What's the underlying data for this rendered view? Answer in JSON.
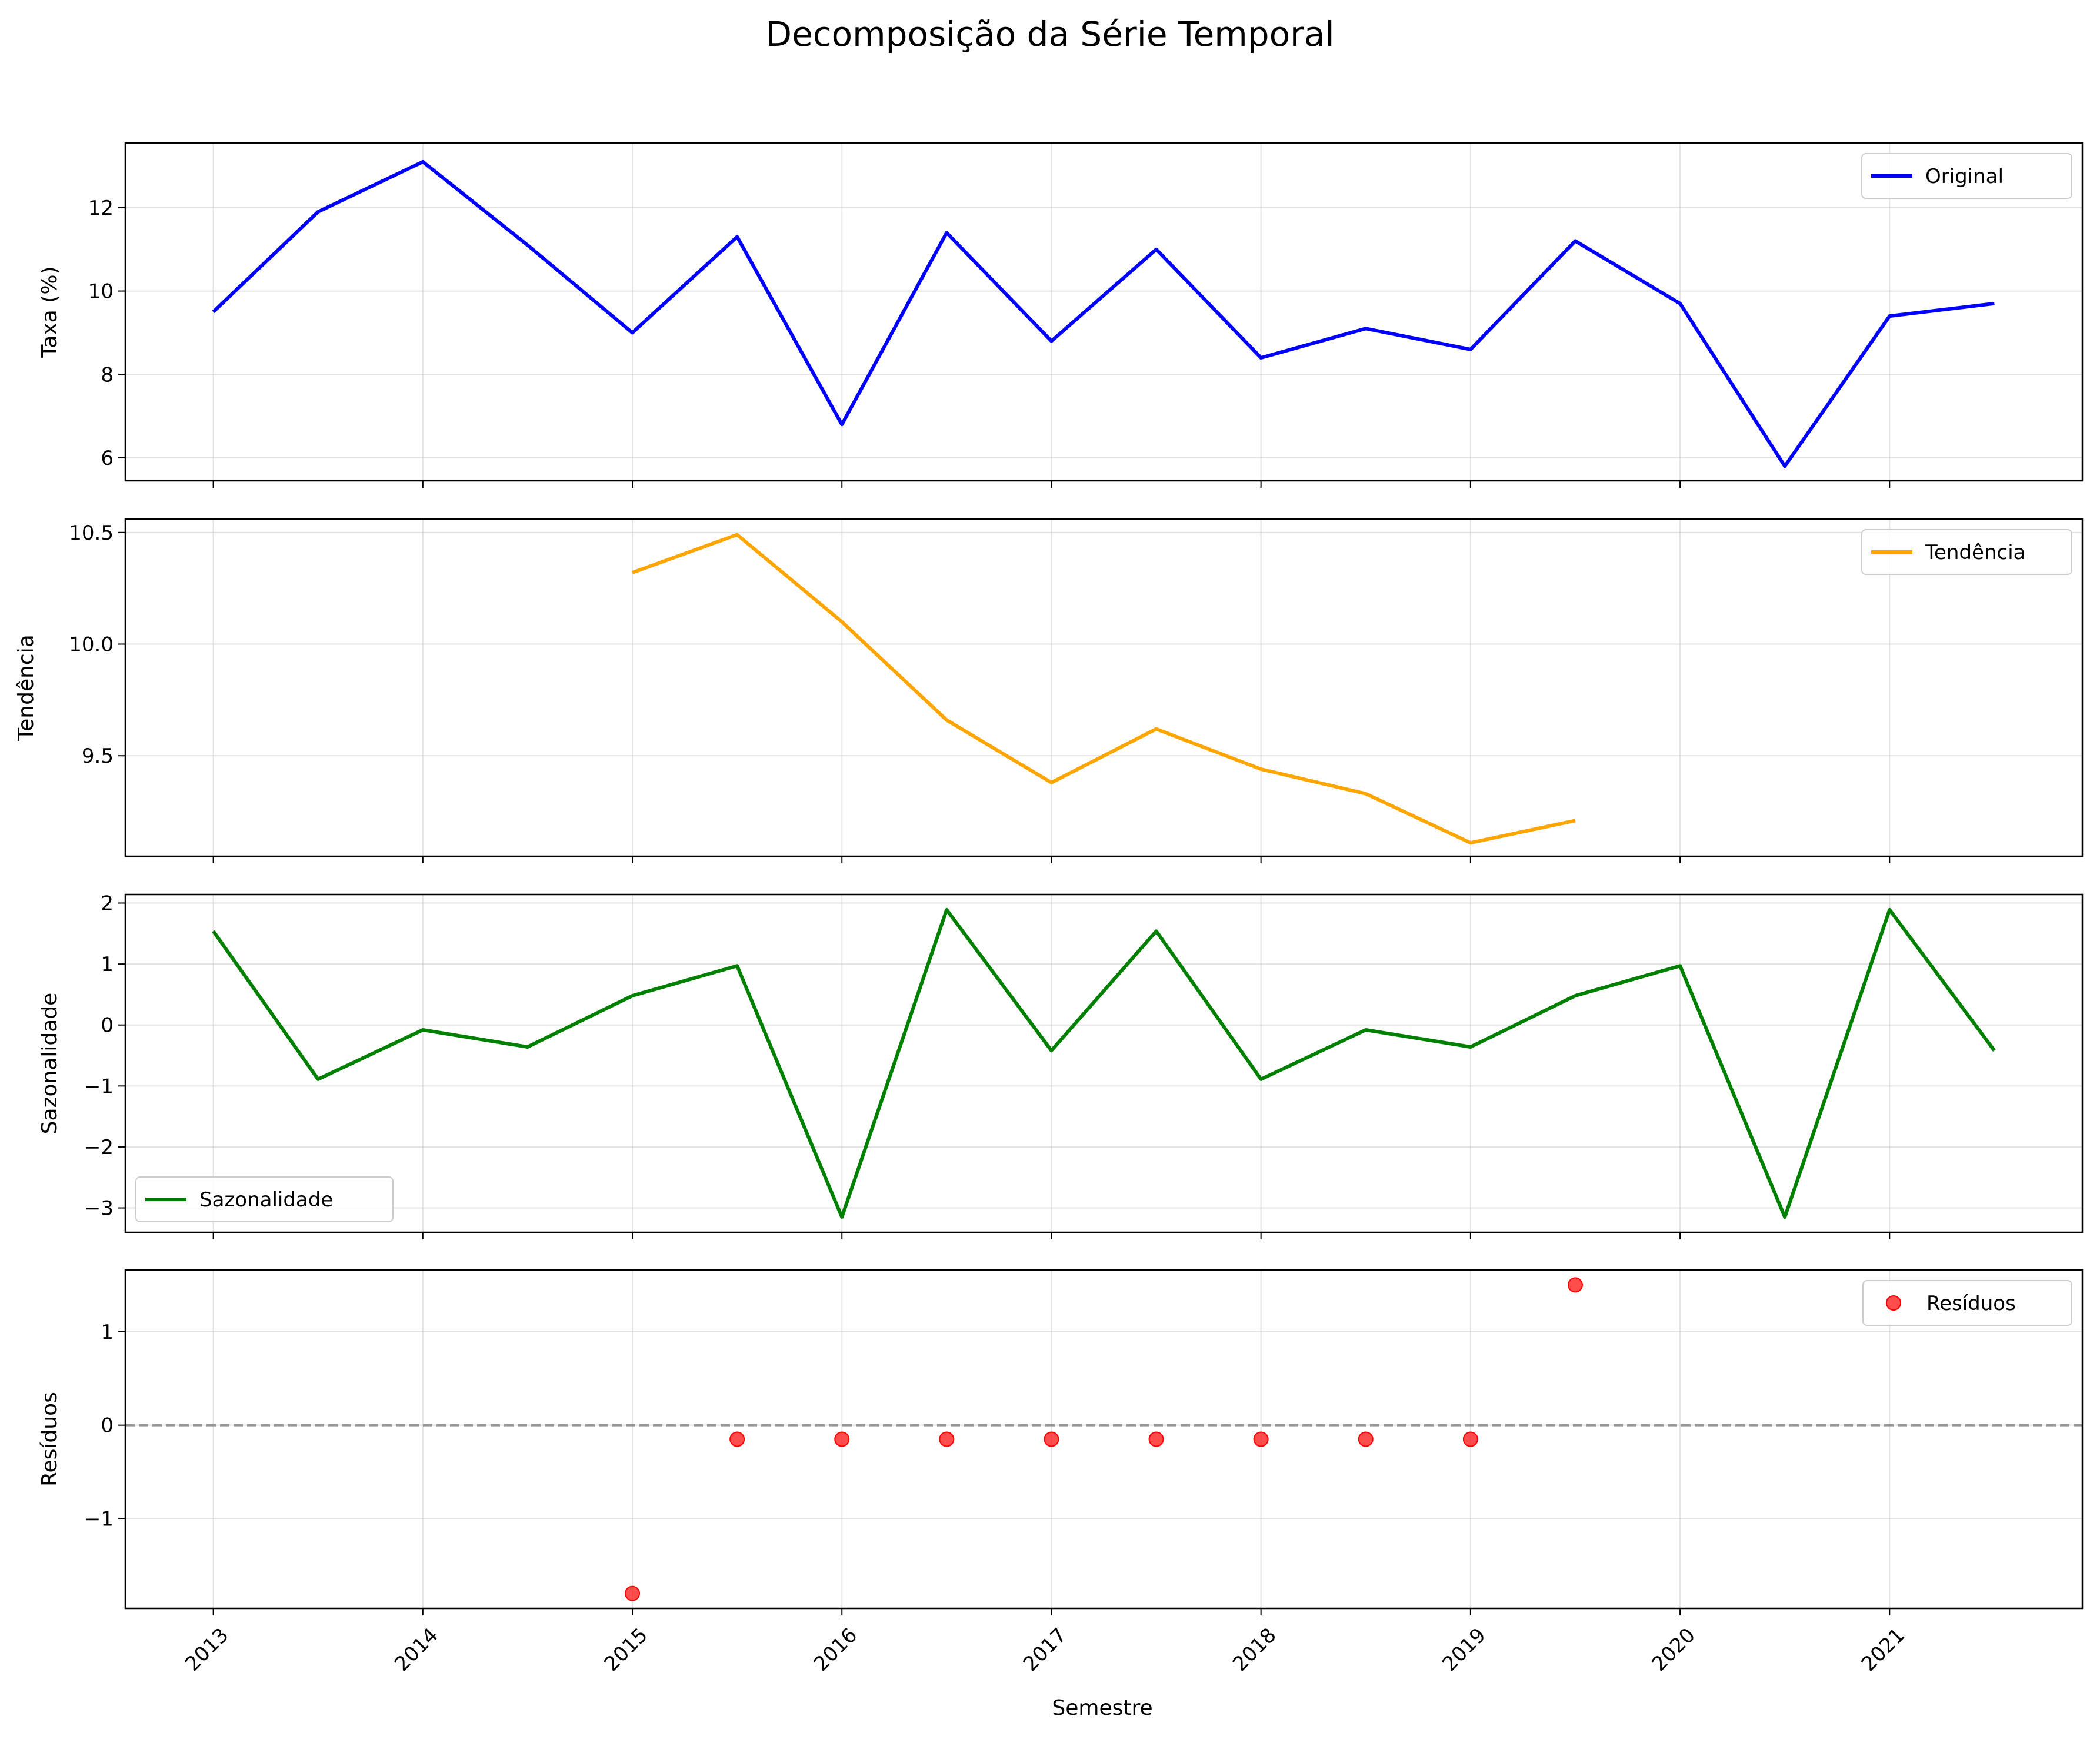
{
  "figure": {
    "title": "Decomposição da Série Temporal",
    "xlabel": "Semestre"
  },
  "chart_data": [
    {
      "type": "line",
      "ylabel": "Taxa (%)",
      "legend": "Original",
      "legend_position": "top-right",
      "color": "#0000ff",
      "x": [
        2013,
        2013.5,
        2014,
        2014.5,
        2015,
        2015.5,
        2016,
        2016.5,
        2017,
        2017.5,
        2018,
        2018.5,
        2019,
        2019.5,
        2020,
        2020.5,
        2021,
        2021.5
      ],
      "values": [
        9.5,
        11.9,
        13.1,
        11.1,
        9.0,
        11.3,
        6.8,
        11.4,
        8.8,
        11.0,
        8.4,
        9.1,
        8.6,
        11.2,
        9.7,
        5.8,
        9.4,
        9.7
      ],
      "ylim": [
        5.45,
        13.55
      ],
      "yticks": [
        6,
        8,
        10,
        12
      ],
      "ytick_labels": [
        "6",
        "8",
        "10",
        "12"
      ],
      "grid": true
    },
    {
      "type": "line",
      "ylabel": "Tendência",
      "legend": "Tendência",
      "legend_position": "top-right",
      "color": "#ffa500",
      "x": [
        2015,
        2015.5,
        2016,
        2016.5,
        2017,
        2017.5,
        2018,
        2018.5,
        2019,
        2019.5
      ],
      "values": [
        10.32,
        10.49,
        10.1,
        9.66,
        9.38,
        9.62,
        9.44,
        9.33,
        9.11,
        9.21
      ],
      "ylim": [
        9.05,
        10.56
      ],
      "yticks": [
        9.5,
        10.0,
        10.5
      ],
      "ytick_labels": [
        "9.5",
        "10.0",
        "10.5"
      ],
      "grid": true
    },
    {
      "type": "line",
      "ylabel": "Sazonalidade",
      "legend": "Sazonalidade",
      "legend_position": "lower-left",
      "color": "#008000",
      "x": [
        2013,
        2013.5,
        2014,
        2014.5,
        2015,
        2015.5,
        2016,
        2016.5,
        2017,
        2017.5,
        2018,
        2018.5,
        2019,
        2019.5,
        2020,
        2020.5,
        2021,
        2021.5
      ],
      "values": [
        1.54,
        -0.89,
        -0.08,
        -0.36,
        0.48,
        0.97,
        -3.15,
        1.89,
        -0.42,
        1.54,
        -0.89,
        -0.08,
        -0.36,
        0.48,
        0.97,
        -3.15,
        1.89,
        -0.42
      ],
      "ylim": [
        -3.4,
        2.14
      ],
      "yticks": [
        -3,
        -2,
        -1,
        0,
        1,
        2
      ],
      "ytick_labels": [
        "−3",
        "−2",
        "−1",
        "0",
        "1",
        "2"
      ],
      "grid": true
    },
    {
      "type": "scatter",
      "ylabel": "Resíduos",
      "legend": "Resíduos",
      "legend_position": "top-right",
      "color": "#ff0000",
      "x": [
        2015,
        2015.5,
        2016,
        2016.5,
        2017,
        2017.5,
        2018,
        2018.5,
        2019,
        2019.5
      ],
      "values": [
        -1.8,
        -0.15,
        -0.15,
        -0.15,
        -0.15,
        -0.15,
        -0.15,
        -0.15,
        -0.15,
        1.5
      ],
      "reference_line": 0,
      "ylim": [
        -1.96,
        1.66
      ],
      "yticks": [
        -1,
        0,
        1
      ],
      "ytick_labels": [
        "−1",
        "0",
        "1"
      ],
      "grid": true
    }
  ],
  "xaxis": {
    "xlim": [
      2012.58,
      2021.92
    ],
    "ticks": [
      2013,
      2014,
      2015,
      2016,
      2017,
      2018,
      2019,
      2020,
      2021
    ],
    "tick_labels": [
      "2013",
      "2014",
      "2015",
      "2016",
      "2017",
      "2018",
      "2019",
      "2020",
      "2021"
    ]
  }
}
